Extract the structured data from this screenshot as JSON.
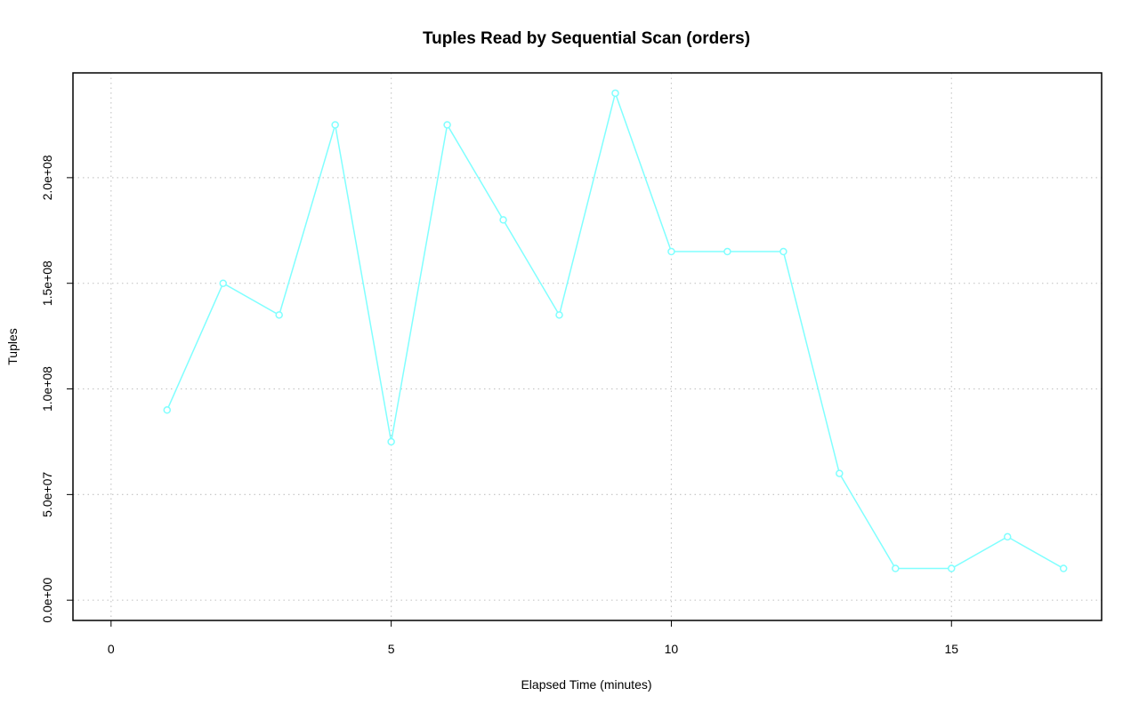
{
  "chart_data": {
    "type": "line",
    "title": "Tuples Read by Sequential Scan (orders)",
    "x_label": "Elapsed Time (minutes)",
    "y_label": "Tuples",
    "x": [
      1,
      2,
      3,
      4,
      5,
      6,
      7,
      8,
      9,
      10,
      11,
      12,
      13,
      14,
      15,
      16,
      17
    ],
    "series": [
      {
        "name": "orders",
        "color": "#80ffff",
        "values": [
          90000000,
          150000000,
          135000000,
          225000000,
          75000000,
          225000000,
          180000000,
          135000000,
          240000000,
          165000000,
          165000000,
          165000000,
          60000000,
          15000000,
          15000000,
          30000000,
          15000000
        ]
      }
    ],
    "xlim": [
      -0.68,
      17.68
    ],
    "ylim": [
      -9600000,
      249600000
    ],
    "xticks": [
      0,
      5,
      10,
      15
    ],
    "yticks": [
      {
        "value": 0,
        "label": "0.0e+00"
      },
      {
        "value": 50000000,
        "label": "5.0e+07"
      },
      {
        "value": 100000000,
        "label": "1.0e+08"
      },
      {
        "value": 150000000,
        "label": "1.5e+08"
      },
      {
        "value": 200000000,
        "label": "2.0e+08"
      }
    ],
    "grid": true
  }
}
